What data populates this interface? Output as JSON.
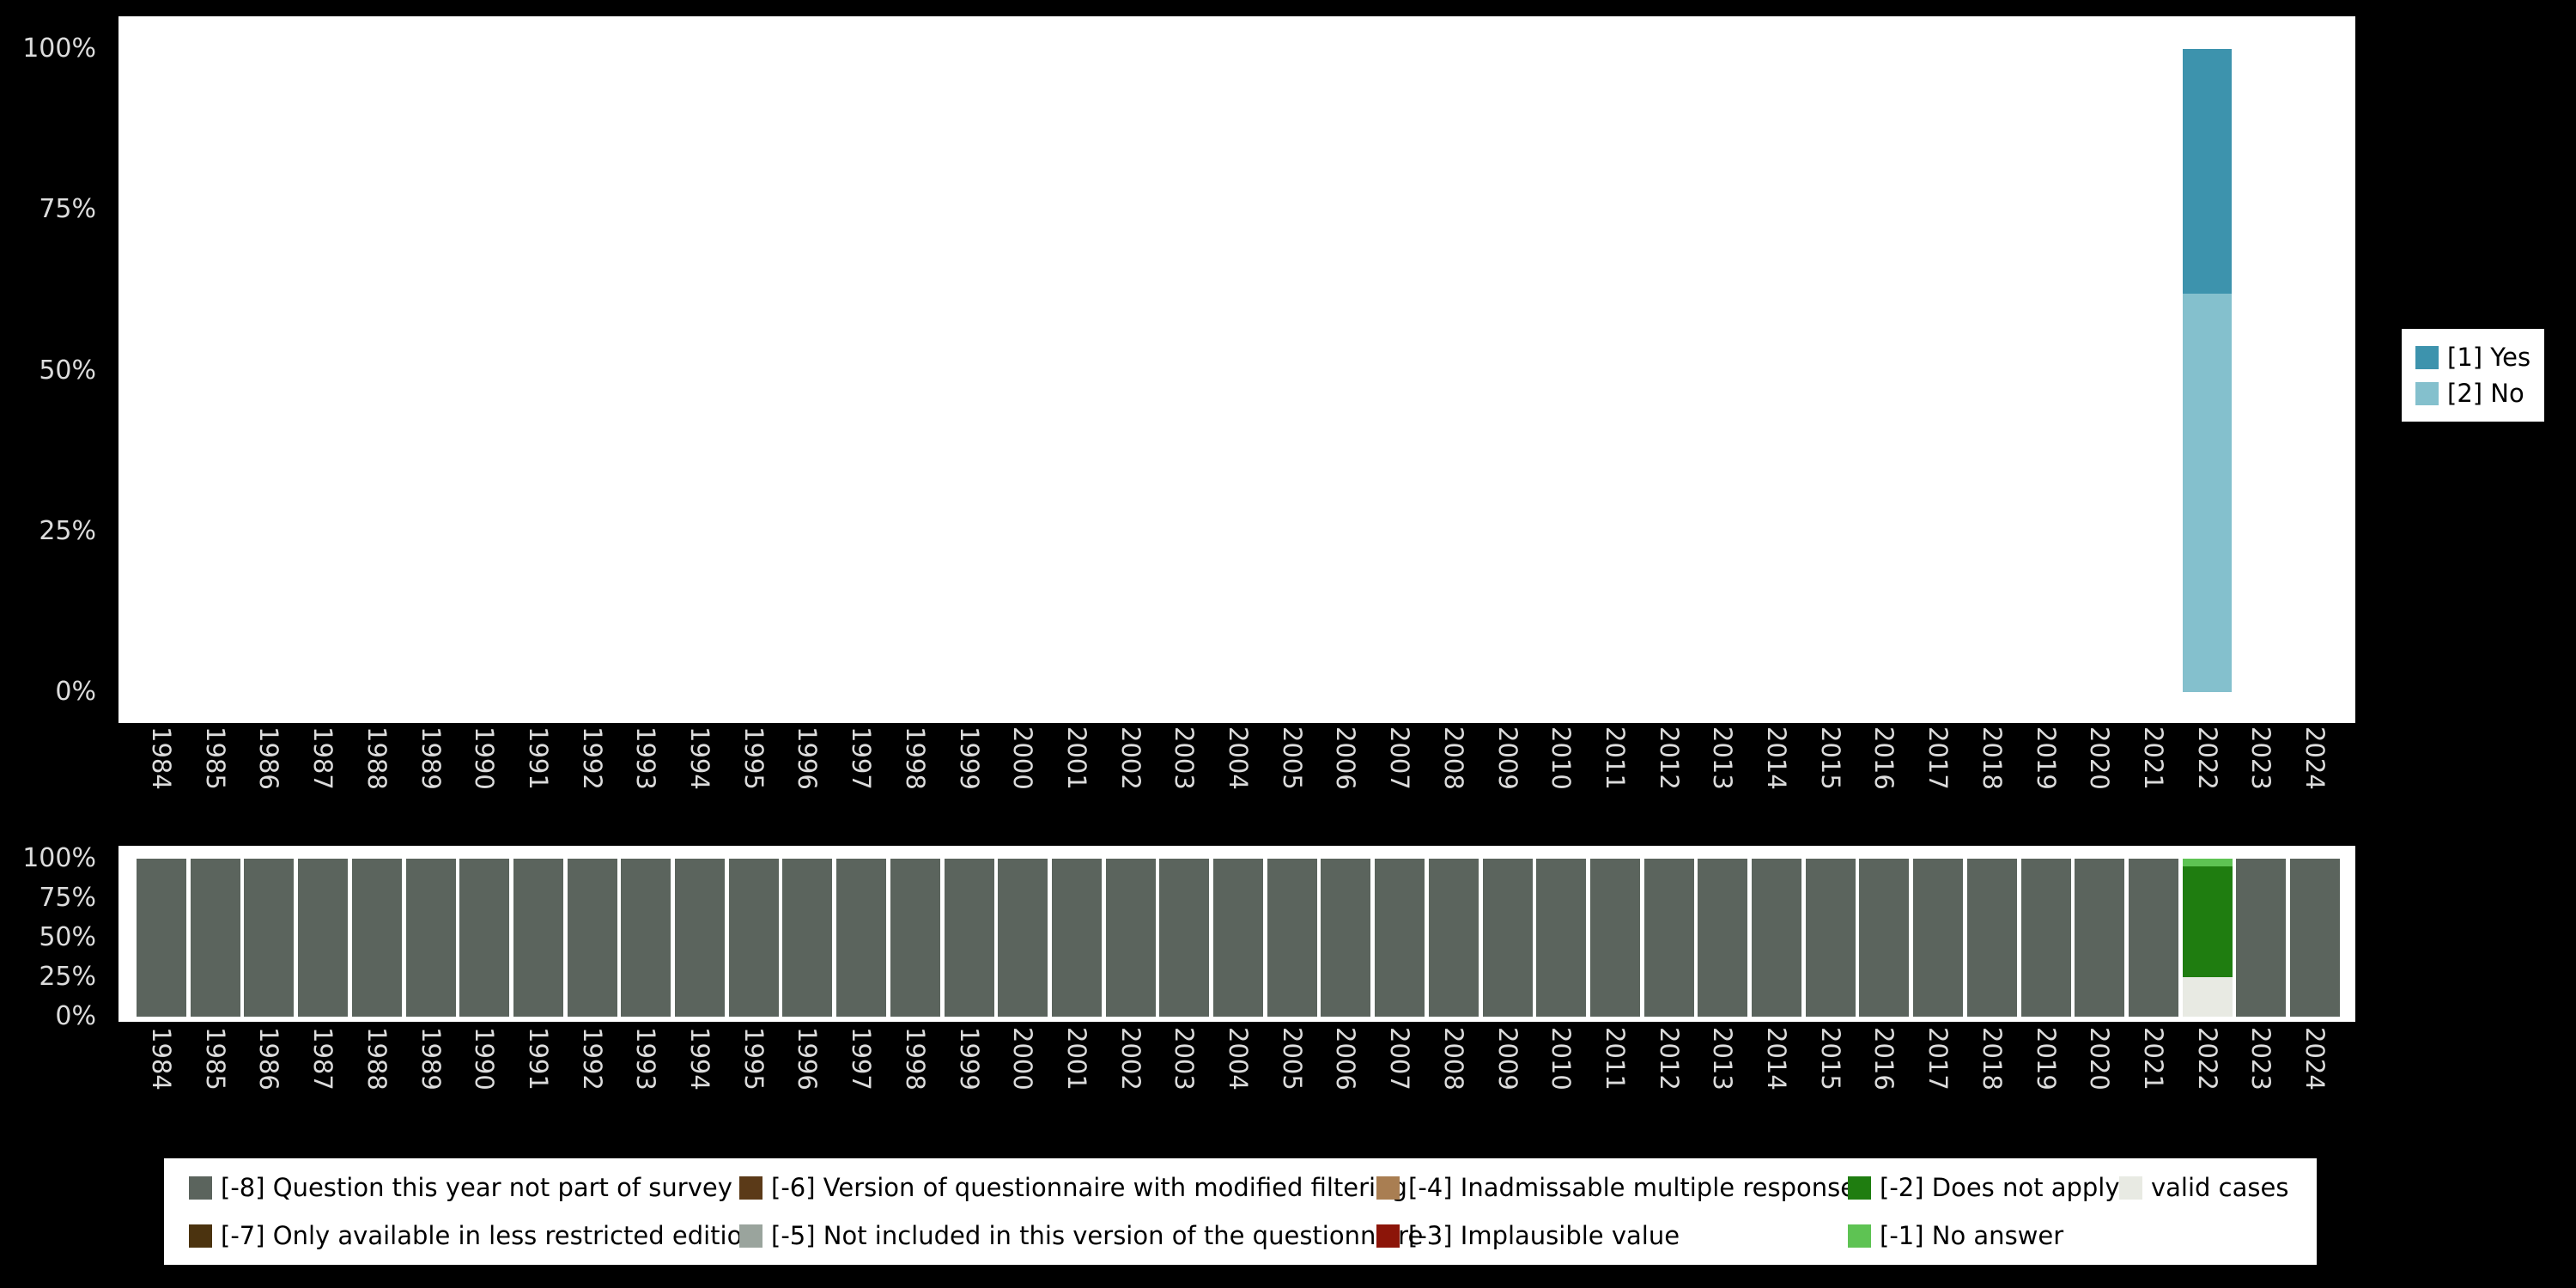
{
  "page_background": "#000000",
  "axis_text_color": "#dcdcdc",
  "chart_data": [
    {
      "type": "bar",
      "stacked": true,
      "stack_order": "bottom-to-top",
      "title": "",
      "xlabel": "",
      "ylabel": "",
      "ylim": [
        0,
        100
      ],
      "yticks": [
        "0%",
        "25%",
        "50%",
        "75%",
        "100%"
      ],
      "legend_position": "right",
      "categories": [
        "1984",
        "1985",
        "1986",
        "1987",
        "1988",
        "1989",
        "1990",
        "1991",
        "1992",
        "1993",
        "1994",
        "1995",
        "1996",
        "1997",
        "1998",
        "1999",
        "2000",
        "2001",
        "2002",
        "2003",
        "2004",
        "2005",
        "2006",
        "2007",
        "2008",
        "2009",
        "2010",
        "2011",
        "2012",
        "2013",
        "2014",
        "2015",
        "2016",
        "2017",
        "2018",
        "2019",
        "2020",
        "2021",
        "2022",
        "2023",
        "2024"
      ],
      "series": [
        {
          "name": "[2] No",
          "color": "#84c0cd",
          "values": [
            0,
            0,
            0,
            0,
            0,
            0,
            0,
            0,
            0,
            0,
            0,
            0,
            0,
            0,
            0,
            0,
            0,
            0,
            0,
            0,
            0,
            0,
            0,
            0,
            0,
            0,
            0,
            0,
            0,
            0,
            0,
            0,
            0,
            0,
            0,
            0,
            0,
            0,
            62,
            0,
            0
          ]
        },
        {
          "name": "[1] Yes",
          "color": "#3d93ad",
          "values": [
            0,
            0,
            0,
            0,
            0,
            0,
            0,
            0,
            0,
            0,
            0,
            0,
            0,
            0,
            0,
            0,
            0,
            0,
            0,
            0,
            0,
            0,
            0,
            0,
            0,
            0,
            0,
            0,
            0,
            0,
            0,
            0,
            0,
            0,
            0,
            0,
            0,
            0,
            38,
            0,
            0
          ]
        }
      ]
    },
    {
      "type": "bar",
      "stacked": true,
      "stack_order": "bottom-to-top",
      "title": "",
      "xlabel": "",
      "ylabel": "",
      "ylim": [
        0,
        100
      ],
      "yticks": [
        "0%",
        "25%",
        "50%",
        "75%",
        "100%"
      ],
      "legend_position": "bottom",
      "categories": [
        "1984",
        "1985",
        "1986",
        "1987",
        "1988",
        "1989",
        "1990",
        "1991",
        "1992",
        "1993",
        "1994",
        "1995",
        "1996",
        "1997",
        "1998",
        "1999",
        "2000",
        "2001",
        "2002",
        "2003",
        "2004",
        "2005",
        "2006",
        "2007",
        "2008",
        "2009",
        "2010",
        "2011",
        "2012",
        "2013",
        "2014",
        "2015",
        "2016",
        "2017",
        "2018",
        "2019",
        "2020",
        "2021",
        "2022",
        "2023",
        "2024"
      ],
      "series": [
        {
          "name": "valid cases",
          "color": "#e8eae3",
          "values": [
            0,
            0,
            0,
            0,
            0,
            0,
            0,
            0,
            0,
            0,
            0,
            0,
            0,
            0,
            0,
            0,
            0,
            0,
            0,
            0,
            0,
            0,
            0,
            0,
            0,
            0,
            0,
            0,
            0,
            0,
            0,
            0,
            0,
            0,
            0,
            0,
            0,
            0,
            25,
            0,
            0
          ]
        },
        {
          "name": "[-2] Does not apply",
          "color": "#1f7d10",
          "values": [
            0,
            0,
            0,
            0,
            0,
            0,
            0,
            0,
            0,
            0,
            0,
            0,
            0,
            0,
            0,
            0,
            0,
            0,
            0,
            0,
            0,
            0,
            0,
            0,
            0,
            0,
            0,
            0,
            0,
            0,
            0,
            0,
            0,
            0,
            0,
            0,
            0,
            0,
            70,
            0,
            0
          ]
        },
        {
          "name": "[-1] No answer",
          "color": "#5ec353",
          "values": [
            0,
            0,
            0,
            0,
            0,
            0,
            0,
            0,
            0,
            0,
            0,
            0,
            0,
            0,
            0,
            0,
            0,
            0,
            0,
            0,
            0,
            0,
            0,
            0,
            0,
            0,
            0,
            0,
            0,
            0,
            0,
            0,
            0,
            0,
            0,
            0,
            0,
            0,
            5,
            0,
            0
          ]
        },
        {
          "name": "[-8] Question this year not part of survey",
          "color": "#5b645d",
          "values": [
            100,
            100,
            100,
            100,
            100,
            100,
            100,
            100,
            100,
            100,
            100,
            100,
            100,
            100,
            100,
            100,
            100,
            100,
            100,
            100,
            100,
            100,
            100,
            100,
            100,
            100,
            100,
            100,
            100,
            100,
            100,
            100,
            100,
            100,
            100,
            100,
            100,
            100,
            0,
            100,
            100
          ]
        }
      ]
    }
  ],
  "legend_right": {
    "items": [
      {
        "label": "[1] Yes",
        "color": "#3d93ad"
      },
      {
        "label": "[2] No",
        "color": "#84c0cd"
      }
    ]
  },
  "legend_bottom": {
    "rows": [
      [
        {
          "label": "[-8] Question this year not part of survey",
          "color": "#5b645d"
        },
        {
          "label": "[-6] Version of questionnaire with modified filtering",
          "color": "#5b3a18"
        },
        {
          "label": "[-4] Inadmissable multiple response",
          "color": "#a97e52"
        },
        {
          "label": "[-2] Does not apply",
          "color": "#1f7d10"
        },
        {
          "label": "valid cases",
          "color": "#e8eae3"
        }
      ],
      [
        {
          "label": "[-7] Only available in less restricted edition",
          "color": "#4b330f"
        },
        {
          "label": "[-5] Not included in this version of the questionnaire",
          "color": "#9aa49d"
        },
        {
          "label": "[-3] Implausible value",
          "color": "#8c1509"
        },
        {
          "label": "[-1] No answer",
          "color": "#5ec353"
        }
      ]
    ]
  }
}
